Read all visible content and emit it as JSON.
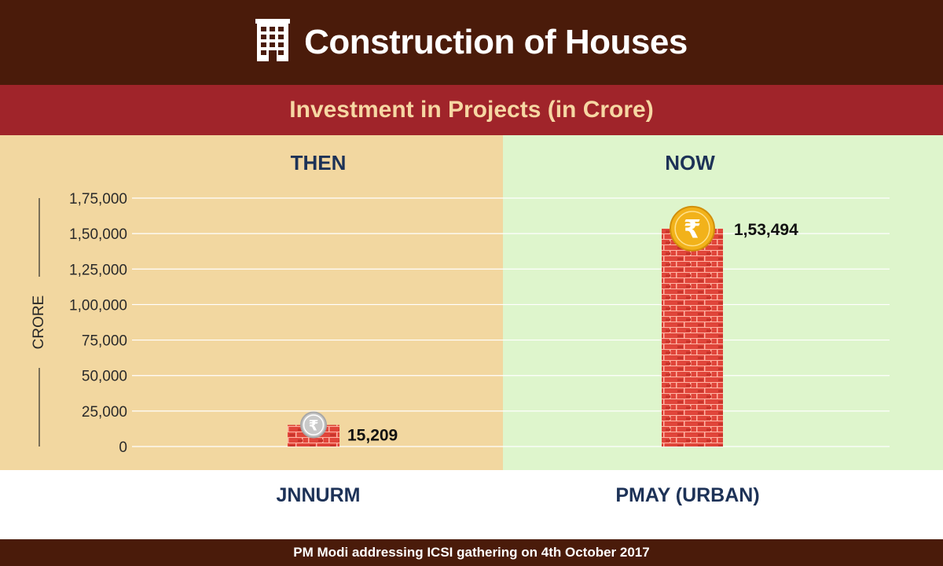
{
  "header": {
    "title": "Construction of Houses",
    "icon": "building-icon"
  },
  "subheader": {
    "title": "Investment in Projects (in Crore)"
  },
  "panels": {
    "left_label": "THEN",
    "right_label": "NOW",
    "left_color": "#f2d7a0",
    "right_color": "#def5cc"
  },
  "footer": {
    "text": "PM Modi addressing ICSI gathering on 4th October 2017"
  },
  "chart_data": {
    "type": "bar",
    "title": "Investment in Projects (in Crore)",
    "categories": [
      "JNNURM",
      "PMAY (URBAN)"
    ],
    "values": [
      15209,
      153494
    ],
    "value_labels": [
      "15,209",
      "1,53,494"
    ],
    "ylabel": "CRORE",
    "ylim": [
      0,
      175000
    ],
    "yticks": [
      0,
      25000,
      50000,
      75000,
      100000,
      125000,
      150000,
      175000
    ],
    "ytick_labels": [
      "0",
      "25,000",
      "50,000",
      "75,000",
      "1,00,000",
      "1,25,000",
      "1,50,000",
      "1,75,000"
    ],
    "grid": true,
    "bar_color": "#e0453a",
    "coin_colors": [
      "#c9c9c9",
      "#f2b21a"
    ]
  }
}
